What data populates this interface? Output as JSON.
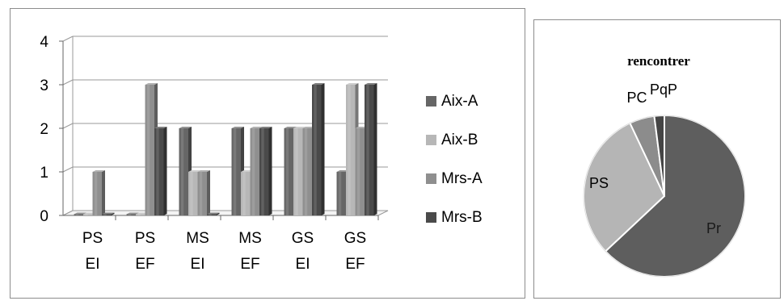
{
  "chart_data": [
    {
      "type": "bar",
      "style": "3d-clustered-column",
      "categories": [
        {
          "line1": "PS",
          "line2": "EI"
        },
        {
          "line1": "PS",
          "line2": "EF"
        },
        {
          "line1": "MS",
          "line2": "EI"
        },
        {
          "line1": "MS",
          "line2": "EF"
        },
        {
          "line1": "GS",
          "line2": "EI"
        },
        {
          "line1": "GS",
          "line2": "EF"
        }
      ],
      "series": [
        {
          "name": "Aix-A",
          "color": "#666666",
          "values": [
            0,
            0,
            2,
            2,
            2,
            1
          ]
        },
        {
          "name": "Aix-B",
          "color": "#b7b7b7",
          "values": [
            0,
            0,
            1,
            1,
            2,
            3
          ]
        },
        {
          "name": "Mrs-A",
          "color": "#8f8f8f",
          "values": [
            1,
            3,
            1,
            2,
            2,
            2
          ]
        },
        {
          "name": "Mrs-B",
          "color": "#4a4a4a",
          "values": [
            0,
            2,
            0,
            2,
            3,
            3
          ]
        }
      ],
      "ylim": [
        0,
        4
      ],
      "yticks": [
        "0",
        "1",
        "2",
        "3",
        "4"
      ],
      "grid": true,
      "legend": "right"
    },
    {
      "type": "pie",
      "title": "rencontrer",
      "slices": [
        {
          "label": "Pr",
          "value": 63,
          "color": "#5e5e5e"
        },
        {
          "label": "PS",
          "value": 30,
          "color": "#b5b5b5"
        },
        {
          "label": "PC",
          "value": 5,
          "color": "#8c8c8c"
        },
        {
          "label": "PqP",
          "value": 2,
          "color": "#454545"
        }
      ]
    }
  ]
}
